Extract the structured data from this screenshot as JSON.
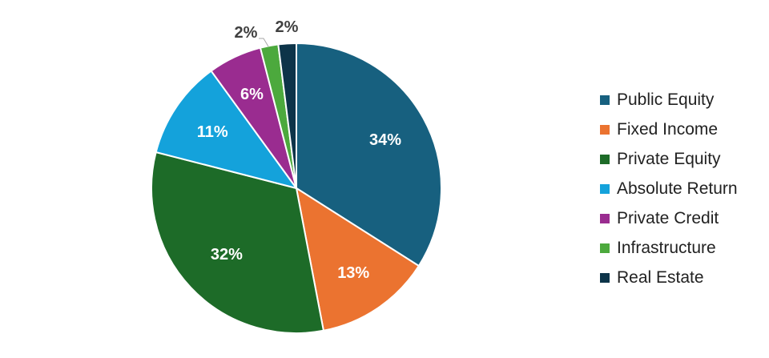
{
  "chart_data": {
    "type": "pie",
    "title": "",
    "legend_position": "right",
    "slices": [
      {
        "label": "Public Equity",
        "value": 34,
        "display": "34%",
        "color": "#17607f"
      },
      {
        "label": "Fixed Income",
        "value": 13,
        "display": "13%",
        "color": "#eb7330"
      },
      {
        "label": "Private Equity",
        "value": 32,
        "display": "32%",
        "color": "#1d6b28"
      },
      {
        "label": "Absolute Return",
        "value": 11,
        "display": "11%",
        "color": "#14a2db"
      },
      {
        "label": "Private Credit",
        "value": 6,
        "display": "6%",
        "color": "#9a2c90"
      },
      {
        "label": "Infrastructure",
        "value": 2,
        "display": "2%",
        "color": "#4ca93d"
      },
      {
        "label": "Real Estate",
        "value": 2,
        "display": "2%",
        "color": "#0d3449"
      }
    ]
  }
}
